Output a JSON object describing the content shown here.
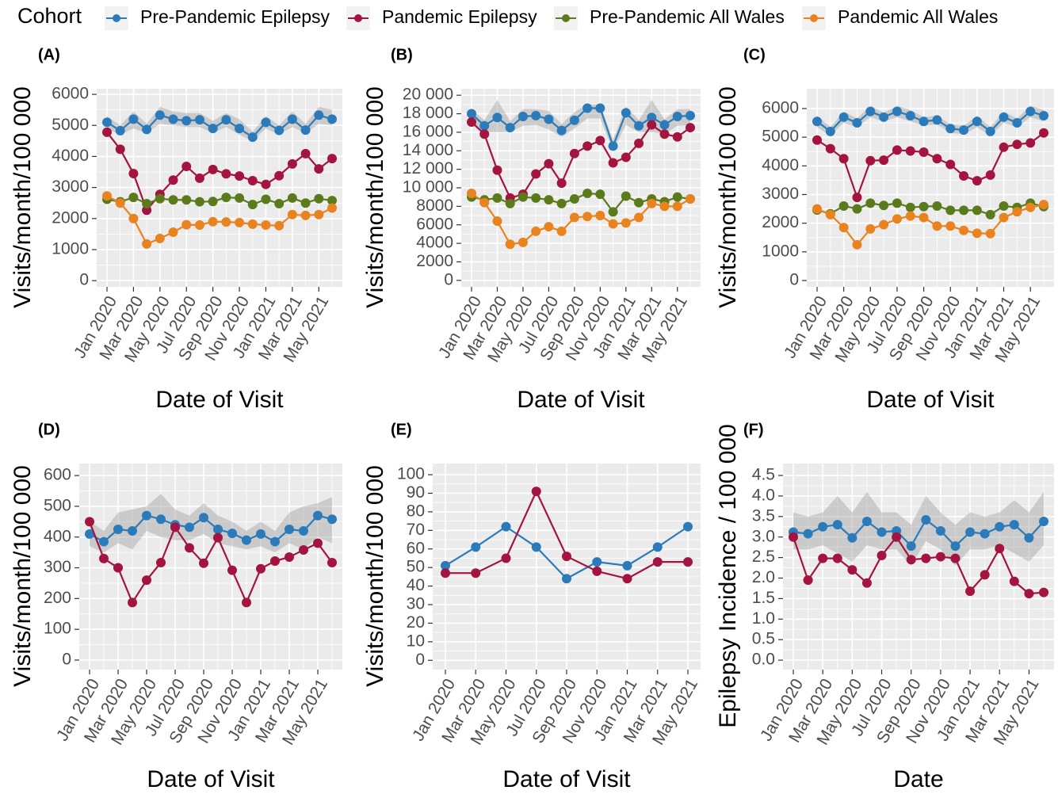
{
  "legend_title": "Cohort",
  "chart_data": [
    {
      "type": "line",
      "label": "(A)",
      "xlabel": "Date of Visit",
      "ylabel": "Visits/month/100 000",
      "categories": [
        "Jan 2020",
        null,
        "Mar 2020",
        null,
        "May 2020",
        null,
        "Jul 2020",
        null,
        "Sep 2020",
        null,
        "Nov 2020",
        null,
        "Jan 2021",
        null,
        "Mar 2021",
        null,
        "May 2021",
        null
      ],
      "ylim": [
        -200,
        6180
      ],
      "yticks": [
        0,
        1000,
        2000,
        3000,
        4000,
        5000,
        6000
      ],
      "band": {
        "lower": [
          4900,
          4700,
          4900,
          4750,
          5050,
          5000,
          4950,
          4950,
          4750,
          4950,
          4700,
          4500,
          4900,
          4700,
          4950,
          4750,
          5050,
          5000
        ],
        "upper": [
          5300,
          5000,
          5450,
          5050,
          5600,
          5450,
          5400,
          5400,
          5150,
          5400,
          5200,
          4800,
          5300,
          5000,
          5450,
          5050,
          5600,
          5500
        ]
      },
      "series": [
        {
          "name": "Pre-Pandemic Epilepsy",
          "color": "#2b7bba",
          "values": [
            5100,
            4830,
            5200,
            4870,
            5330,
            5200,
            5150,
            5180,
            4900,
            5180,
            4900,
            4620,
            5100,
            4840,
            5200,
            4850,
            5330,
            5200
          ]
        },
        {
          "name": "Pandemic Epilepsy",
          "color": "#a3143f",
          "values": [
            4780,
            4230,
            3450,
            2270,
            2780,
            3240,
            3680,
            3300,
            3580,
            3440,
            3370,
            3220,
            3100,
            3380,
            3760,
            4090,
            3600,
            3930
          ]
        },
        {
          "name": "Pre-Pandemic All Wales",
          "color": "#5b7a1c",
          "values": [
            2620,
            2540,
            2680,
            2480,
            2640,
            2600,
            2600,
            2540,
            2550,
            2680,
            2660,
            2450,
            2620,
            2480,
            2660,
            2500,
            2640,
            2580
          ]
        },
        {
          "name": "Pandemic All Wales",
          "color": "#e8831f",
          "values": [
            2730,
            2500,
            2000,
            1180,
            1360,
            1560,
            1800,
            1790,
            1900,
            1890,
            1870,
            1820,
            1790,
            1770,
            2130,
            2100,
            2130,
            2340
          ]
        }
      ]
    },
    {
      "type": "line",
      "label": "(B)",
      "xlabel": "Date of Visit",
      "ylabel": "Visits/month/100 000",
      "categories": [
        "Jan 2020",
        null,
        "Mar 2020",
        null,
        "May 2020",
        null,
        "Jul 2020",
        null,
        "Sep 2020",
        null,
        "Nov 2020",
        null,
        "Jan 2021",
        null,
        "Mar 2021",
        null,
        "May 2021",
        null
      ],
      "ylim": [
        -700,
        20700
      ],
      "yticks": [
        0,
        2000,
        4000,
        6000,
        8000,
        {
          "value": 10000,
          "label": "10 000"
        },
        {
          "value": 12000,
          "label": "12 000"
        },
        {
          "value": 14000,
          "label": "14 000"
        },
        {
          "value": 16000,
          "label": "16 000"
        },
        {
          "value": 18000,
          "label": "18 000"
        },
        {
          "value": 20000,
          "label": "20 000"
        }
      ],
      "band": {
        "lower": [
          16800,
          16000,
          16000,
          16000,
          16700,
          16800,
          16300,
          15500,
          16400,
          17500,
          17500,
          14000,
          16800,
          16000,
          16000,
          15800,
          16700,
          16800
        ],
        "upper": [
          18500,
          17300,
          19500,
          17200,
          18500,
          18500,
          18300,
          16900,
          18200,
          19000,
          19000,
          15200,
          18800,
          17300,
          19500,
          17400,
          18500,
          18500
        ]
      },
      "series": [
        {
          "name": "Pre-Pandemic Epilepsy",
          "color": "#2b7bba",
          "values": [
            18000,
            16700,
            17600,
            16500,
            17700,
            17800,
            17400,
            16200,
            17300,
            18600,
            18600,
            14500,
            18100,
            16700,
            17600,
            16800,
            17700,
            17800
          ]
        },
        {
          "name": "Pandemic Epilepsy",
          "color": "#a3143f",
          "values": [
            17100,
            15800,
            11900,
            8900,
            9300,
            11500,
            12600,
            10500,
            13700,
            14500,
            15100,
            12700,
            13300,
            14800,
            16800,
            15800,
            15500,
            16500
          ]
        },
        {
          "name": "Pre-Pandemic All Wales",
          "color": "#5b7a1c",
          "values": [
            9000,
            8700,
            8900,
            8300,
            9000,
            8900,
            8700,
            8300,
            8800,
            9400,
            9300,
            7400,
            9100,
            8400,
            8800,
            8500,
            9000,
            8800
          ]
        },
        {
          "name": "Pandemic All Wales",
          "color": "#e8831f",
          "values": [
            9400,
            8400,
            6400,
            3900,
            4100,
            5300,
            5800,
            5300,
            6800,
            6900,
            7000,
            6100,
            6200,
            6800,
            8300,
            8000,
            8000,
            8800
          ]
        }
      ]
    },
    {
      "type": "line",
      "label": "(C)",
      "xlabel": "Date of Visit",
      "ylabel": "Visits/month/100 000",
      "categories": [
        "Jan 2020",
        null,
        "Mar 2020",
        null,
        "May 2020",
        null,
        "Jul 2020",
        null,
        "Sep 2020",
        null,
        "Nov 2020",
        null,
        "Jan 2021",
        null,
        "Mar 2021",
        null,
        "May 2021",
        null
      ],
      "ylim": [
        -220,
        6690
      ],
      "yticks": [
        0,
        1000,
        2000,
        3000,
        4000,
        5000,
        6000
      ],
      "band": {
        "lower": [
          5350,
          5050,
          5500,
          5350,
          5700,
          5550,
          5700,
          5550,
          5400,
          5450,
          5150,
          5100,
          5350,
          5050,
          5500,
          5350,
          5700,
          5550
        ],
        "upper": [
          5750,
          5350,
          5900,
          5650,
          6100,
          5850,
          6100,
          5950,
          5700,
          5750,
          5450,
          5400,
          5750,
          5350,
          5900,
          5650,
          6100,
          5950
        ]
      },
      "series": [
        {
          "name": "Pre-Pandemic Epilepsy",
          "color": "#2b7bba",
          "values": [
            5550,
            5200,
            5700,
            5500,
            5900,
            5700,
            5900,
            5750,
            5550,
            5600,
            5300,
            5250,
            5550,
            5200,
            5700,
            5500,
            5900,
            5750
          ]
        },
        {
          "name": "Pandemic Epilepsy",
          "color": "#a3143f",
          "values": [
            4900,
            4600,
            4250,
            2900,
            4180,
            4200,
            4550,
            4520,
            4480,
            4250,
            4050,
            3650,
            3480,
            3680,
            4650,
            4750,
            4800,
            5150
          ]
        },
        {
          "name": "Pre-Pandemic All Wales",
          "color": "#5b7a1c",
          "values": [
            2460,
            2330,
            2600,
            2500,
            2700,
            2620,
            2700,
            2550,
            2580,
            2600,
            2450,
            2450,
            2450,
            2300,
            2600,
            2550,
            2700,
            2580
          ]
        },
        {
          "name": "Pandemic All Wales",
          "color": "#e8831f",
          "values": [
            2500,
            2300,
            1850,
            1250,
            1800,
            1950,
            2150,
            2250,
            2200,
            1900,
            1900,
            1750,
            1650,
            1640,
            2200,
            2400,
            2550,
            2650
          ]
        }
      ]
    },
    {
      "type": "line",
      "label": "(D)",
      "xlabel": "Date of Visit",
      "ylabel": "Visits/month/100 000",
      "categories": [
        "Jan 2020",
        null,
        "Mar 2020",
        null,
        "May 2020",
        null,
        "Jul 2020",
        null,
        "Sep 2020",
        null,
        "Nov 2020",
        null,
        "Jan 2021",
        null,
        "Mar 2021",
        null,
        "May 2021",
        null
      ],
      "ylim": [
        -31,
        639
      ],
      "yticks": [
        0,
        100,
        200,
        300,
        400,
        500,
        600
      ],
      "band": {
        "lower": [
          370,
          350,
          380,
          360,
          420,
          400,
          390,
          390,
          410,
          380,
          370,
          360,
          370,
          350,
          380,
          360,
          400,
          380
        ],
        "upper": [
          450,
          420,
          480,
          490,
          500,
          540,
          490,
          470,
          510,
          470,
          450,
          420,
          450,
          420,
          480,
          500,
          510,
          530
        ]
      },
      "series": [
        {
          "name": "Pre-Pandemic Epilepsy",
          "color": "#2b7bba",
          "values": [
            410,
            385,
            425,
            420,
            470,
            458,
            440,
            432,
            463,
            425,
            412,
            390,
            410,
            385,
            425,
            420,
            470,
            458
          ]
        },
        {
          "name": "Pandemic Epilepsy",
          "color": "#a3143f",
          "values": [
            450,
            330,
            300,
            187,
            260,
            317,
            432,
            365,
            315,
            398,
            292,
            187,
            297,
            322,
            335,
            358,
            380,
            317
          ]
        }
      ]
    },
    {
      "type": "line",
      "label": "(E)",
      "xlabel": "Date of Visit",
      "ylabel": "Visits/month/100 000",
      "categories": [
        "Jan 2020",
        "Mar 2020",
        "May 2020",
        "Jul 2020",
        "Sep 2020",
        "Nov 2020",
        "Jan 2021",
        "Mar 2021",
        "May 2021"
      ],
      "ylim": [
        -5,
        106
      ],
      "yticks": [
        0,
        10,
        20,
        30,
        40,
        50,
        60,
        70,
        80,
        90,
        100
      ],
      "series": [
        {
          "name": "Pre-Pandemic Epilepsy",
          "color": "#2b7bba",
          "values": [
            51,
            61,
            72,
            61,
            44,
            53,
            51,
            61,
            72
          ]
        },
        {
          "name": "Pandemic Epilepsy",
          "color": "#a3143f",
          "values": [
            47,
            47,
            55,
            91,
            56,
            48,
            44,
            53,
            53
          ]
        }
      ]
    },
    {
      "type": "line",
      "label": "(F)",
      "xlabel": "Date",
      "ylabel": "Epilepsy Incidence / 100 000",
      "categories": [
        "Jan 2020",
        null,
        "Mar 2020",
        null,
        "May 2020",
        null,
        "Jul 2020",
        null,
        "Sep 2020",
        null,
        "Nov 2020",
        null,
        "Jan 2021",
        null,
        "Mar 2021",
        null,
        "May 2021",
        null
      ],
      "ylim": [
        -0.23,
        4.79
      ],
      "yticks": [
        {
          "value": 0,
          "label": "0.0"
        },
        0.5,
        {
          "value": 1,
          "label": "1.0"
        },
        1.5,
        {
          "value": 2,
          "label": "2.0"
        },
        2.5,
        {
          "value": 3,
          "label": "3.0"
        },
        3.5,
        {
          "value": 4,
          "label": "4.0"
        },
        4.5
      ],
      "band": {
        "lower": [
          2.7,
          2.7,
          2.8,
          2.6,
          2.4,
          2.8,
          2.7,
          2.7,
          2.3,
          2.9,
          2.7,
          2.3,
          2.7,
          2.7,
          2.8,
          2.6,
          2.4,
          2.8
        ],
        "upper": [
          3.6,
          3.5,
          3.6,
          4.0,
          3.6,
          4.1,
          3.6,
          3.6,
          3.3,
          4.0,
          3.6,
          3.3,
          3.6,
          3.5,
          3.6,
          3.9,
          3.6,
          4.1
        ]
      },
      "series": [
        {
          "name": "Pre-Pandemic Epilepsy",
          "color": "#2b7bba",
          "values": [
            3.12,
            3.08,
            3.25,
            3.3,
            2.98,
            3.38,
            3.12,
            3.15,
            2.78,
            3.42,
            3.15,
            2.78,
            3.12,
            3.08,
            3.25,
            3.3,
            2.98,
            3.38
          ]
        },
        {
          "name": "Pandemic Epilepsy",
          "color": "#a3143f",
          "values": [
            3.0,
            1.95,
            2.48,
            2.48,
            2.2,
            1.88,
            2.55,
            3.0,
            2.45,
            2.48,
            2.52,
            2.48,
            1.68,
            2.08,
            2.72,
            1.92,
            1.62,
            1.65
          ]
        }
      ]
    }
  ]
}
